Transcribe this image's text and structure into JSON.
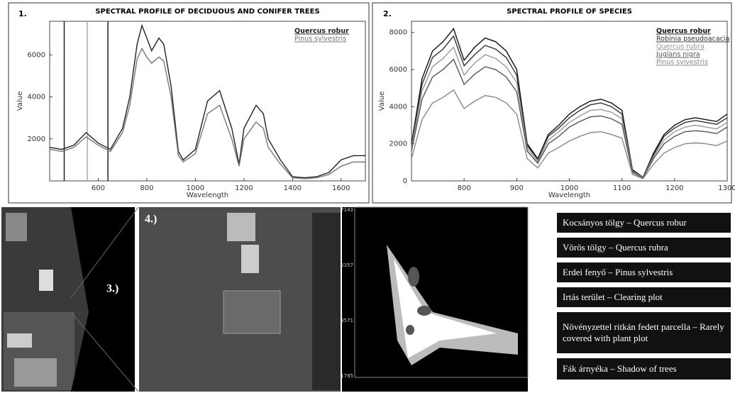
{
  "chart_data": [
    {
      "type": "line",
      "panel_label": "1.",
      "title": "SPECTRAL PROFILE OF DECIDUOUS AND CONIFER TREES",
      "x_label": "Wavelength",
      "y_label": "Value",
      "x": [
        400,
        450,
        500,
        550,
        600,
        650,
        700,
        730,
        760,
        780,
        800,
        820,
        850,
        870,
        900,
        930,
        950,
        1000,
        1050,
        1100,
        1150,
        1180,
        1200,
        1250,
        1280,
        1300,
        1350,
        1400,
        1450,
        1500,
        1550,
        1600,
        1650,
        1700
      ],
      "series": [
        {
          "name": "Quercus robur",
          "color": "#222222",
          "values": [
            1600,
            1500,
            1700,
            2300,
            1800,
            1500,
            2500,
            4000,
            6500,
            7400,
            6800,
            6200,
            6800,
            6500,
            4500,
            1400,
            1000,
            1500,
            3800,
            4300,
            2500,
            800,
            2500,
            3600,
            3200,
            2000,
            1000,
            200,
            150,
            200,
            400,
            1000,
            1200,
            1200
          ]
        },
        {
          "name": "Pinus sylvestris",
          "color": "#777777",
          "values": [
            1500,
            1400,
            1600,
            2100,
            1700,
            1400,
            2300,
            3600,
            5800,
            6300,
            5900,
            5600,
            5900,
            5700,
            4000,
            1200,
            900,
            1300,
            3200,
            3600,
            2000,
            700,
            2000,
            2800,
            2500,
            1600,
            800,
            150,
            100,
            150,
            300,
            700,
            900,
            900
          ]
        }
      ],
      "vlines": [
        460,
        555,
        640
      ],
      "xlim": [
        400,
        1700
      ],
      "xticks": [
        600,
        800,
        1000,
        1200,
        1400,
        1600
      ],
      "ylim": [
        0,
        7600
      ],
      "yticks": [
        2000,
        4000,
        6000
      ]
    },
    {
      "type": "line",
      "panel_label": "2.",
      "title": "SPECTRAL PROFILE OF SPECIES",
      "x_label": "Wavelength",
      "y_label": "Value",
      "x": [
        700,
        720,
        740,
        760,
        780,
        800,
        820,
        840,
        860,
        880,
        900,
        920,
        940,
        960,
        980,
        1000,
        1020,
        1040,
        1060,
        1080,
        1100,
        1120,
        1140,
        1160,
        1180,
        1200,
        1220,
        1240,
        1260,
        1280,
        1300
      ],
      "series": [
        {
          "name": "Quercus robur",
          "color": "#111111",
          "values": [
            2000,
            5500,
            7000,
            7500,
            8200,
            6500,
            7200,
            7700,
            7500,
            7000,
            6000,
            2000,
            1200,
            2500,
            3000,
            3600,
            4000,
            4300,
            4400,
            4200,
            3800,
            600,
            200,
            1500,
            2500,
            3000,
            3300,
            3400,
            3300,
            3200,
            3600
          ]
        },
        {
          "name": "Robinia pseudoacacia",
          "color": "#333333",
          "values": [
            1900,
            5200,
            6650,
            7100,
            7800,
            6200,
            6800,
            7300,
            7100,
            6650,
            5700,
            1900,
            1150,
            2400,
            2850,
            3400,
            3800,
            4100,
            4200,
            4000,
            3600,
            550,
            200,
            1400,
            2400,
            2850,
            3150,
            3250,
            3150,
            3050,
            3400
          ]
        },
        {
          "name": "Quercus rubra",
          "color": "#999999",
          "values": [
            1750,
            4850,
            6150,
            6600,
            7200,
            5700,
            6350,
            6800,
            6600,
            6150,
            5300,
            1750,
            1050,
            2200,
            2650,
            3150,
            3500,
            3800,
            3850,
            3700,
            3350,
            500,
            180,
            1300,
            2200,
            2650,
            2900,
            3000,
            2900,
            2800,
            3150
          ]
        },
        {
          "name": "Juglans nigra",
          "color": "#555555",
          "values": [
            1600,
            4400,
            5600,
            6000,
            6550,
            5200,
            5750,
            6150,
            6000,
            5600,
            4800,
            1600,
            950,
            2000,
            2400,
            2900,
            3200,
            3450,
            3500,
            3350,
            3050,
            450,
            160,
            1200,
            2000,
            2400,
            2650,
            2700,
            2650,
            2550,
            2900
          ]
        },
        {
          "name": "Pinus sylvestris",
          "color": "#888888",
          "values": [
            1200,
            3300,
            4200,
            4500,
            4900,
            3900,
            4300,
            4600,
            4500,
            4200,
            3600,
            1200,
            700,
            1500,
            1800,
            2150,
            2400,
            2600,
            2650,
            2500,
            2300,
            350,
            120,
            900,
            1500,
            1800,
            2000,
            2050,
            2000,
            1900,
            2150
          ]
        }
      ],
      "xlim": [
        700,
        1300
      ],
      "xticks": [
        800,
        900,
        1000,
        1100,
        1200,
        1300
      ],
      "ylim": [
        0,
        8600
      ],
      "yticks": [
        0,
        2000,
        4000,
        6000,
        8000
      ]
    }
  ],
  "panels": {
    "label_3": "3.)",
    "label_4": "4.)"
  },
  "scatter_ticks": [
    7143,
    5357,
    3571,
    1785
  ],
  "legend_table": [
    "Kocsányos tölgy – Quercus robur",
    "Vörös tölgy – Quercus rubra",
    "Erdei fenyő – Pinus sylvestris",
    "Irtás terület – Clearing plot",
    "Növényzettel ritkán fedett parcella – Rarely covered with plant plot",
    "Fák árnyéka – Shadow of trees"
  ]
}
